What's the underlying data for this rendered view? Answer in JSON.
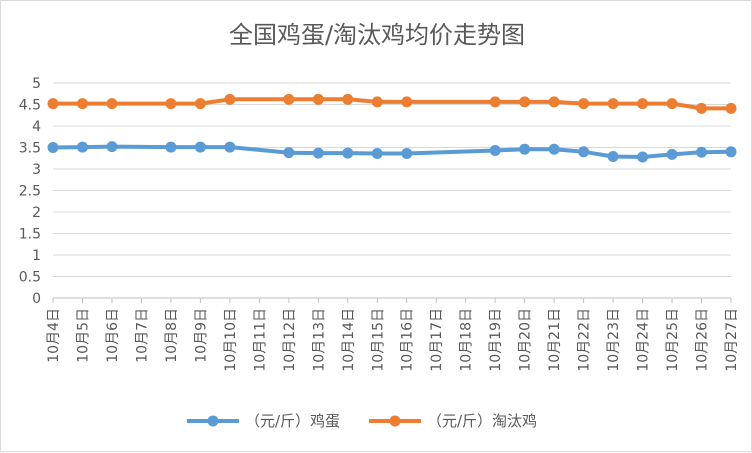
{
  "chart_data": {
    "type": "line",
    "title": "全国鸡蛋/淘汰鸡均价走势图",
    "categories": [
      "10月4日",
      "10月5日",
      "10月6日",
      "10月7日",
      "10月8日",
      "10月9日",
      "10月10日",
      "10月11日",
      "10月12日",
      "10月13日",
      "10月14日",
      "10月15日",
      "10月16日",
      "10月17日",
      "10月18日",
      "10月19日",
      "10月20日",
      "10月21日",
      "10月22日",
      "10月23日",
      "10月24日",
      "10月25日",
      "10月26日",
      "10月27日"
    ],
    "series": [
      {
        "name": "（元/斤）鸡蛋",
        "color": "#5b9bd5",
        "values": [
          3.5,
          3.51,
          3.52,
          null,
          3.51,
          3.51,
          3.51,
          null,
          3.38,
          3.37,
          3.37,
          3.36,
          3.36,
          null,
          null,
          3.43,
          3.46,
          3.46,
          3.4,
          3.29,
          3.28,
          3.34,
          3.39,
          3.4
        ]
      },
      {
        "name": "（元/斤）淘汰鸡",
        "color": "#ed7d31",
        "values": [
          4.52,
          4.52,
          4.52,
          null,
          4.52,
          4.52,
          4.62,
          null,
          4.62,
          4.62,
          4.62,
          4.56,
          4.56,
          null,
          null,
          4.56,
          4.56,
          4.56,
          4.52,
          4.52,
          4.52,
          4.52,
          4.41,
          4.41
        ]
      }
    ],
    "yticks": [
      "0",
      "0.5",
      "1",
      "1.5",
      "2",
      "2.5",
      "3",
      "3.5",
      "4",
      "4.5",
      "5"
    ],
    "ylim": [
      0,
      5
    ],
    "grid": true,
    "legend_position": "bottom"
  }
}
